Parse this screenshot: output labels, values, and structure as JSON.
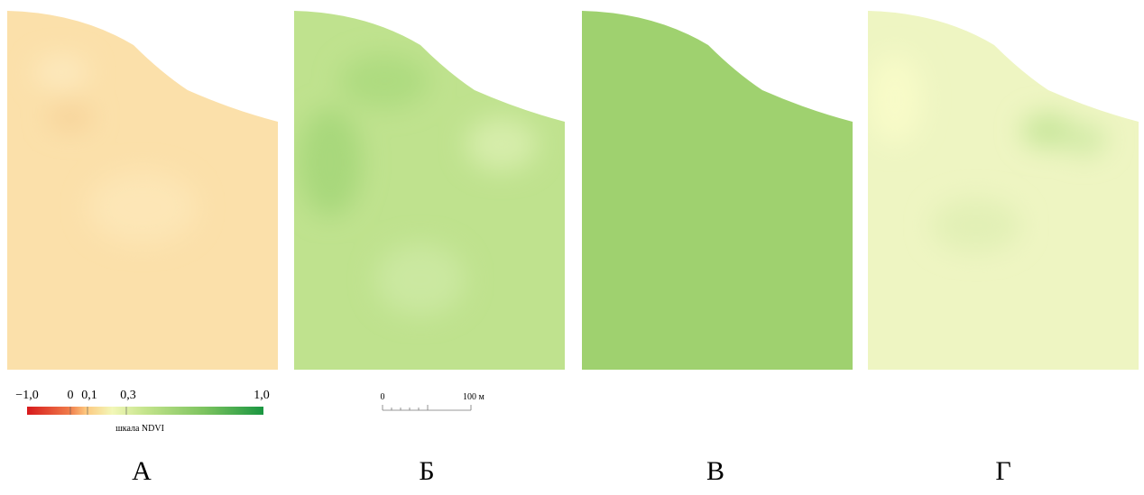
{
  "panels": [
    {
      "label": "А"
    },
    {
      "label": "Б"
    },
    {
      "label": "В"
    },
    {
      "label": "Г"
    }
  ],
  "legend": {
    "ticks": [
      "−1,0",
      "0",
      "0,1",
      "0,3",
      "1,0"
    ],
    "title": "шкала NDVI"
  },
  "scale_bar": {
    "start": "0",
    "end": "100 м"
  }
}
